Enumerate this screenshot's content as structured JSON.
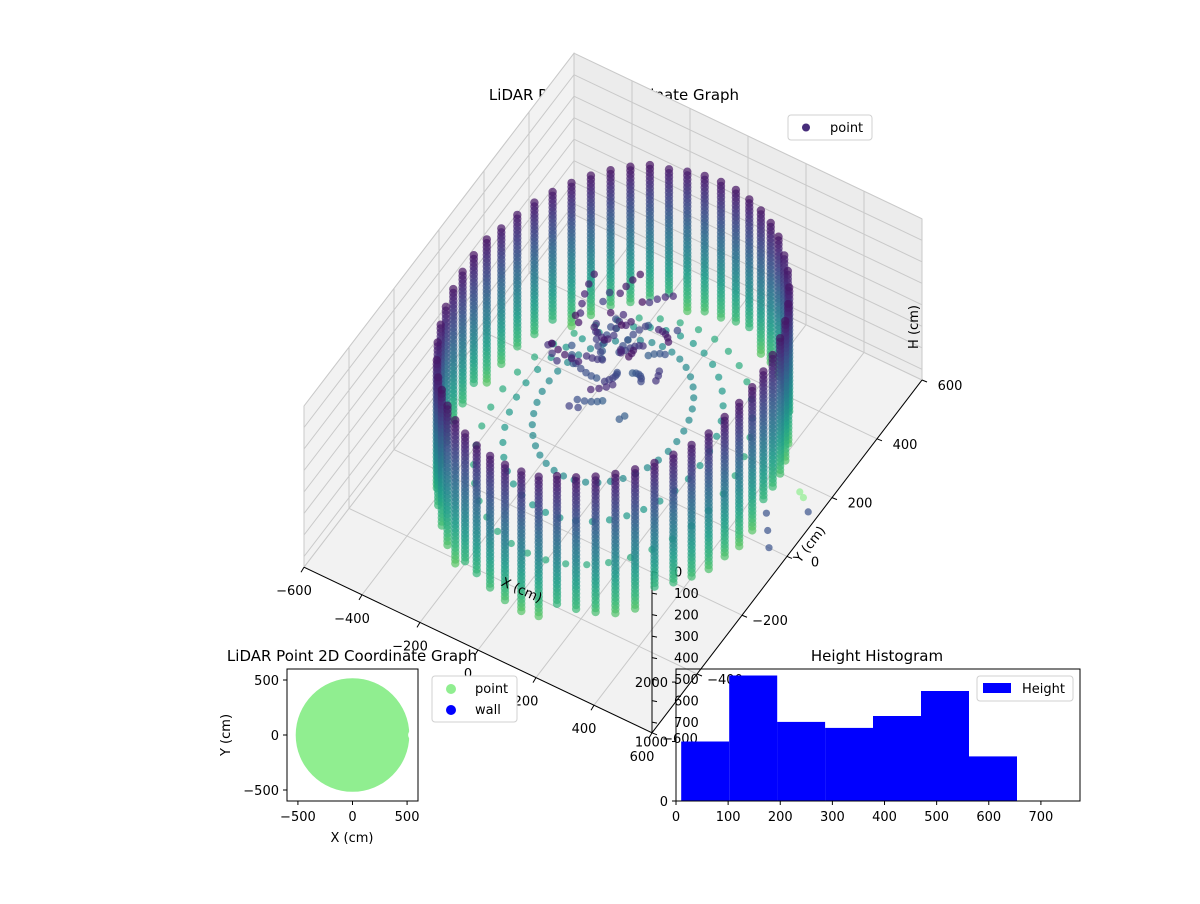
{
  "chart_data": [
    {
      "type": "scatter",
      "title": "LiDAR Point 3D Coordinate Graph",
      "xlabel": "X (cm)",
      "ylabel": "Y (cm)",
      "zlabel": "H (cm)",
      "xlim": [
        -600,
        600
      ],
      "ylim": [
        -600,
        600
      ],
      "zlim": [
        0,
        750
      ],
      "x_ticks": [
        -600,
        -400,
        -200,
        0,
        200,
        400,
        600
      ],
      "y_ticks": [
        -600,
        -400,
        -200,
        0,
        200,
        400,
        600
      ],
      "z_ticks": [
        0,
        100,
        200,
        300,
        400,
        500,
        600,
        700
      ],
      "x_tick_labels": [
        "−600",
        "−400",
        "−200",
        "0",
        "200",
        "400",
        "600"
      ],
      "y_tick_labels": [
        "−600",
        "−400",
        "−200",
        "0",
        "200",
        "400",
        "600"
      ],
      "z_tick_labels": [
        "0",
        "100",
        "200",
        "300",
        "400",
        "500",
        "600",
        "700"
      ],
      "grid": true,
      "z_inverted": true,
      "legend": {
        "placement": "top-right",
        "entries": [
          {
            "label": "point",
            "color": "#472d7b"
          }
        ]
      },
      "colormap": "viridis",
      "shape": "cylindrical room wall point cloud",
      "wall_radius": 480,
      "columns": 56,
      "wall_height_range": [
        40,
        720
      ],
      "extra_points": [
        {
          "x": 560,
          "y": -40,
          "h": 520,
          "color": "#3b528b"
        },
        {
          "x": 580,
          "y": -60,
          "h": 560,
          "color": "#3b528b"
        },
        {
          "x": 600,
          "y": -80,
          "h": 600,
          "color": "#3b528b"
        },
        {
          "x": 520,
          "y": 160,
          "h": 720,
          "color": "#90ee90"
        },
        {
          "x": 540,
          "y": 150,
          "h": 720,
          "color": "#90ee90"
        },
        {
          "x": 580,
          "y": 120,
          "h": 720,
          "color": "#3b528b"
        }
      ]
    },
    {
      "type": "scatter",
      "title": "LiDAR Point 2D Coordinate Graph",
      "xlabel": "X (cm)",
      "ylabel": "Y (cm)",
      "xlim": [
        -600,
        600
      ],
      "ylim": [
        -600,
        600
      ],
      "x_ticks": [
        -500,
        0,
        500
      ],
      "y_ticks": [
        -500,
        0,
        500
      ],
      "x_tick_labels": [
        "−500",
        "0",
        "500"
      ],
      "y_tick_labels": [
        "−500",
        "0",
        "500"
      ],
      "legend": {
        "placement": "outside-right",
        "entries": [
          {
            "label": "point",
            "color": "#90ee90"
          },
          {
            "label": "wall",
            "color": "#0000ff"
          }
        ]
      },
      "point_region": {
        "center": [
          0,
          0
        ],
        "radius": 520
      },
      "notch": {
        "at": [
          560,
          0
        ],
        "radius": 50
      }
    },
    {
      "type": "bar",
      "title": "Height Histogram",
      "xlabel": "",
      "ylabel": "",
      "bins": [
        [
          10,
          102
        ],
        [
          102,
          194
        ],
        [
          194,
          286
        ],
        [
          286,
          378
        ],
        [
          378,
          470
        ],
        [
          470,
          562
        ],
        [
          562,
          654
        ]
      ],
      "values": [
        1000,
        2110,
        1330,
        1230,
        1430,
        1850,
        750
      ],
      "xlim": [
        0,
        775
      ],
      "ylim": [
        0,
        2220
      ],
      "x_ticks": [
        0,
        100,
        200,
        300,
        400,
        500,
        600,
        700
      ],
      "y_ticks": [
        0,
        1000,
        2000
      ],
      "x_tick_labels": [
        "0",
        "100",
        "200",
        "300",
        "400",
        "500",
        "600",
        "700"
      ],
      "y_tick_labels": [
        "0",
        "1000",
        "2000"
      ],
      "color": "#0000ff",
      "legend": {
        "placement": "top-right",
        "entries": [
          {
            "label": "Height",
            "color": "#0000ff"
          }
        ]
      }
    }
  ]
}
